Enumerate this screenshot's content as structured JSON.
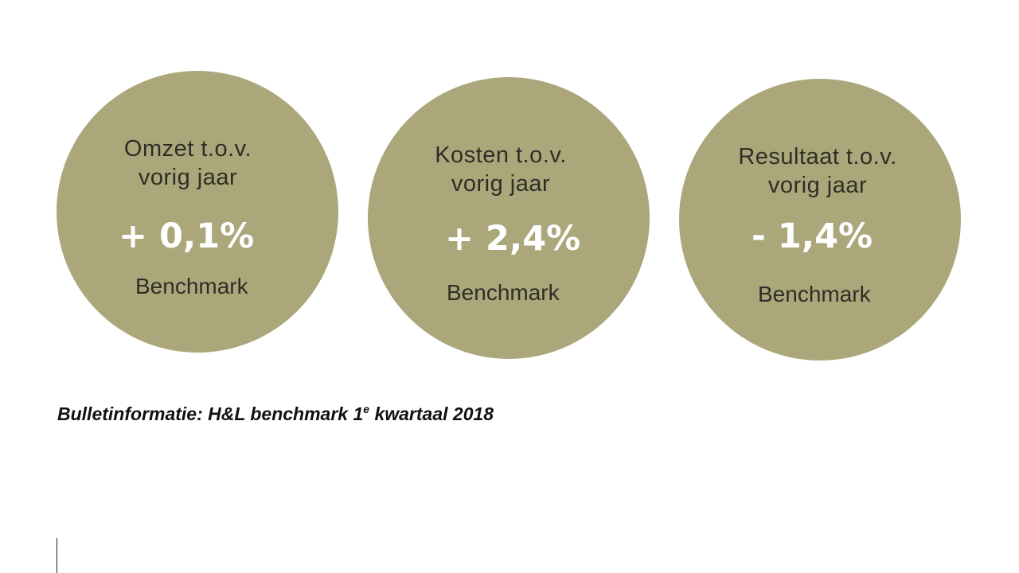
{
  "metrics": [
    {
      "label_line1": "Omzet t.o.v.",
      "label_line2": "vorig jaar",
      "value": "+ 0,1%",
      "sublabel": "Benchmark"
    },
    {
      "label_line1": "Kosten t.o.v.",
      "label_line2": "vorig jaar",
      "value": "+ 2,4%",
      "sublabel": "Benchmark"
    },
    {
      "label_line1": "Resultaat t.o.v.",
      "label_line2": "vorig jaar",
      "value": "- 1,4%",
      "sublabel": "Benchmark"
    }
  ],
  "caption": {
    "prefix": "Bulletinformatie: H&L benchmark 1",
    "superscript": "e",
    "suffix": " kwartaal 2018"
  },
  "colors": {
    "circle_fill": "#aba77b",
    "value_text": "#ffffff",
    "label_text": "#2e2e26"
  }
}
